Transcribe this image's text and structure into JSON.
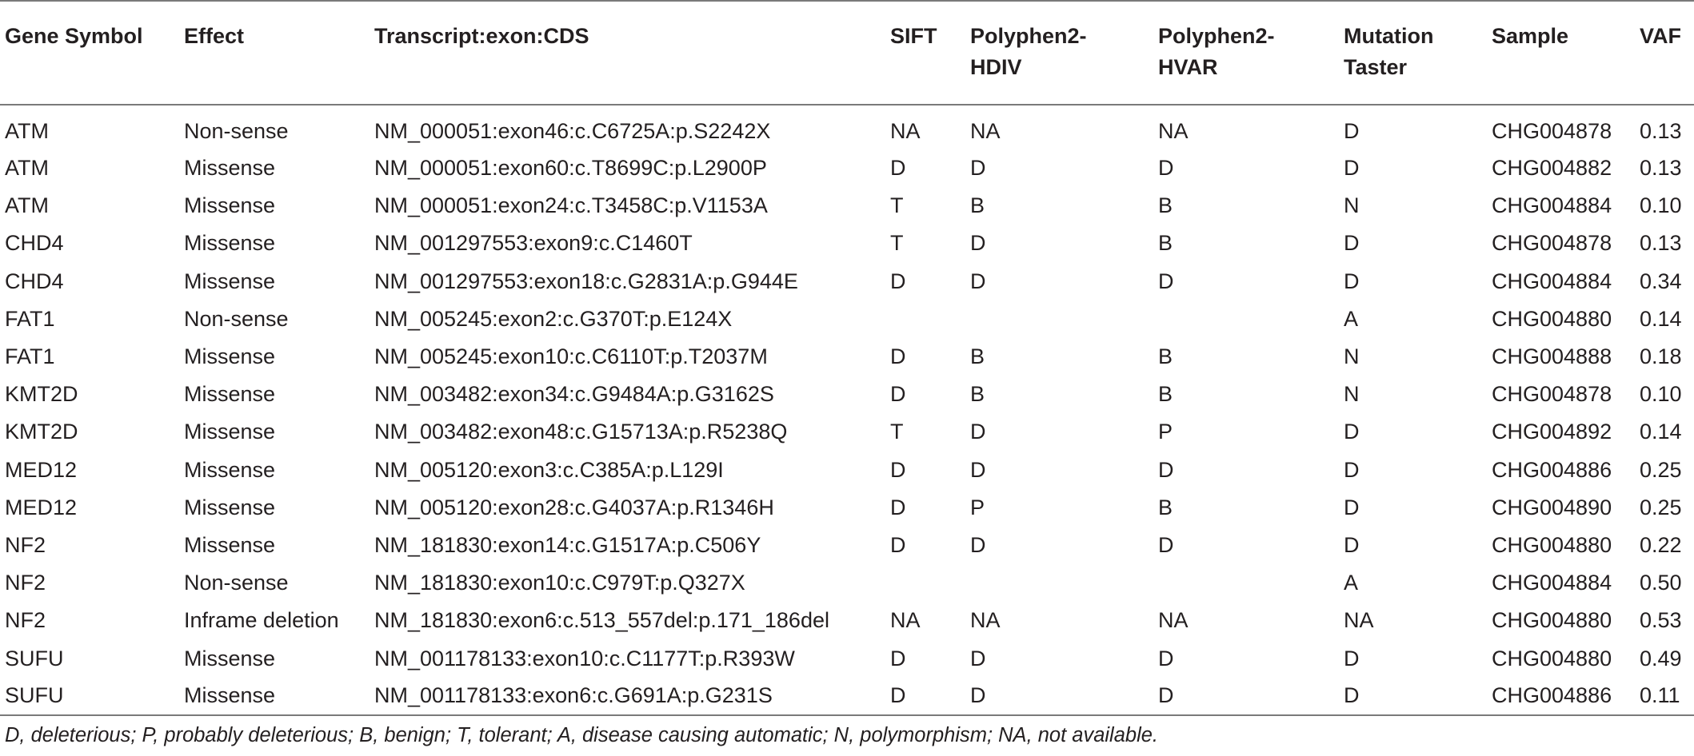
{
  "table": {
    "headers": [
      [
        "Gene Symbol"
      ],
      [
        "Effect"
      ],
      [
        "Transcript:exon:CDS"
      ],
      [
        "SIFT"
      ],
      [
        "Polyphen2-",
        "HDIV"
      ],
      [
        "Polyphen2-",
        "HVAR"
      ],
      [
        "Mutation",
        "Taster"
      ],
      [
        "Sample"
      ],
      [
        "VAF"
      ]
    ],
    "rows": [
      [
        "ATM",
        "Non-sense",
        "NM_000051:exon46:c.C6725A:p.S2242X",
        "NA",
        "NA",
        "NA",
        "D",
        "CHG004878",
        "0.13"
      ],
      [
        "ATM",
        "Missense",
        "NM_000051:exon60:c.T8699C:p.L2900P",
        "D",
        "D",
        "D",
        "D",
        "CHG004882",
        "0.13"
      ],
      [
        "ATM",
        "Missense",
        "NM_000051:exon24:c.T3458C:p.V1153A",
        "T",
        "B",
        "B",
        "N",
        "CHG004884",
        "0.10"
      ],
      [
        "CHD4",
        "Missense",
        "NM_001297553:exon9:c.C1460T",
        "T",
        "D",
        "B",
        "D",
        "CHG004878",
        "0.13"
      ],
      [
        "CHD4",
        "Missense",
        "NM_001297553:exon18:c.G2831A:p.G944E",
        "D",
        "D",
        "D",
        "D",
        "CHG004884",
        "0.34"
      ],
      [
        "FAT1",
        "Non-sense",
        "NM_005245:exon2:c.G370T:p.E124X",
        "",
        "",
        "",
        "A",
        "CHG004880",
        "0.14"
      ],
      [
        "FAT1",
        "Missense",
        "NM_005245:exon10:c.C6110T:p.T2037M",
        "D",
        "B",
        "B",
        "N",
        "CHG004888",
        "0.18"
      ],
      [
        "KMT2D",
        "Missense",
        "NM_003482:exon34:c.G9484A:p.G3162S",
        "D",
        "B",
        "B",
        "N",
        "CHG004878",
        "0.10"
      ],
      [
        "KMT2D",
        "Missense",
        "NM_003482:exon48:c.G15713A:p.R5238Q",
        "T",
        "D",
        "P",
        "D",
        "CHG004892",
        "0.14"
      ],
      [
        "MED12",
        "Missense",
        "NM_005120:exon3:c.C385A:p.L129I",
        "D",
        "D",
        "D",
        "D",
        "CHG004886",
        "0.25"
      ],
      [
        "MED12",
        "Missense",
        "NM_005120:exon28:c.G4037A:p.R1346H",
        "D",
        "P",
        "B",
        "D",
        "CHG004890",
        "0.25"
      ],
      [
        "NF2",
        "Missense",
        "NM_181830:exon14:c.G1517A:p.C506Y",
        "D",
        "D",
        "D",
        "D",
        "CHG004880",
        "0.22"
      ],
      [
        "NF2",
        "Non-sense",
        "NM_181830:exon10:c.C979T:p.Q327X",
        "",
        "",
        "",
        "A",
        "CHG004884",
        "0.50"
      ],
      [
        "NF2",
        "Inframe deletion",
        "NM_181830:exon6:c.513_557del:p.171_186del",
        "NA",
        "NA",
        "NA",
        "NA",
        "CHG004880",
        "0.53"
      ],
      [
        "SUFU",
        "Missense",
        "NM_001178133:exon10:c.C1177T:p.R393W",
        "D",
        "D",
        "D",
        "D",
        "CHG004880",
        "0.49"
      ],
      [
        "SUFU",
        "Missense",
        "NM_001178133:exon6:c.G691A:p.G231S",
        "D",
        "D",
        "D",
        "D",
        "CHG004886",
        "0.11"
      ]
    ]
  },
  "footnote": "D, deleterious; P, probably deleterious; B, benign; T, tolerant; A, disease causing automatic; N, polymorphism; NA, not available."
}
